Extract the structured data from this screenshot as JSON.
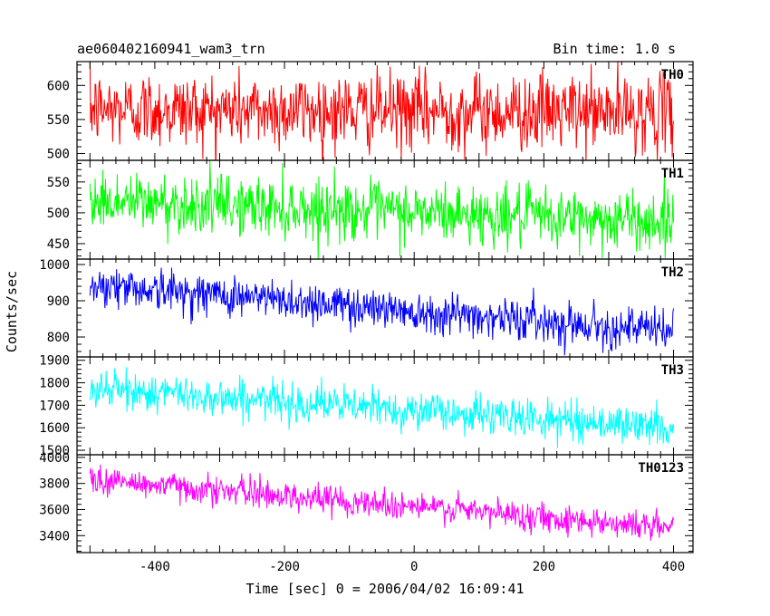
{
  "chart_data": {
    "type": "line",
    "title": "ae060402160941_wam3_trn",
    "subtitle": "Bin time: 1.0 s",
    "xlabel": "Time [sec] 0 = 2006/04/02 16:09:41",
    "ylabel": "Counts/sec",
    "xlim": [
      -520,
      430
    ],
    "xticks": [
      -400,
      -200,
      0,
      200,
      400
    ],
    "grid": false,
    "panels": [
      {
        "name": "TH0",
        "color": "#ff0000",
        "ylim": [
          490,
          635
        ],
        "yticks": [
          500,
          550,
          600
        ],
        "x": [
          -500,
          400
        ],
        "trend_start": 565,
        "trend_end": 560,
        "noise": 28
      },
      {
        "name": "TH1",
        "color": "#00ff00",
        "ylim": [
          425,
          585
        ],
        "yticks": [
          450,
          500,
          550
        ],
        "x": [
          -500,
          400
        ],
        "trend_start": 520,
        "trend_end": 485,
        "noise": 24
      },
      {
        "name": "TH2",
        "color": "#0000ff",
        "ylim": [
          745,
          1015
        ],
        "yticks": [
          800,
          900,
          1000
        ],
        "x": [
          -500,
          400
        ],
        "trend_start": 945,
        "trend_end": 815,
        "noise": 28
      },
      {
        "name": "TH3",
        "color": "#00ffff",
        "ylim": [
          1480,
          1915
        ],
        "yticks": [
          1500,
          1600,
          1700,
          1800,
          1900
        ],
        "x": [
          -500,
          400
        ],
        "trend_start": 1775,
        "trend_end": 1600,
        "noise": 42
      },
      {
        "name": "TH0123",
        "color": "#ff00ff",
        "ylim": [
          3270,
          4020
        ],
        "yticks": [
          3400,
          3600,
          3800,
          4000
        ],
        "x": [
          -500,
          400
        ],
        "trend_start": 3830,
        "trend_end": 3460,
        "noise": 55
      }
    ]
  }
}
